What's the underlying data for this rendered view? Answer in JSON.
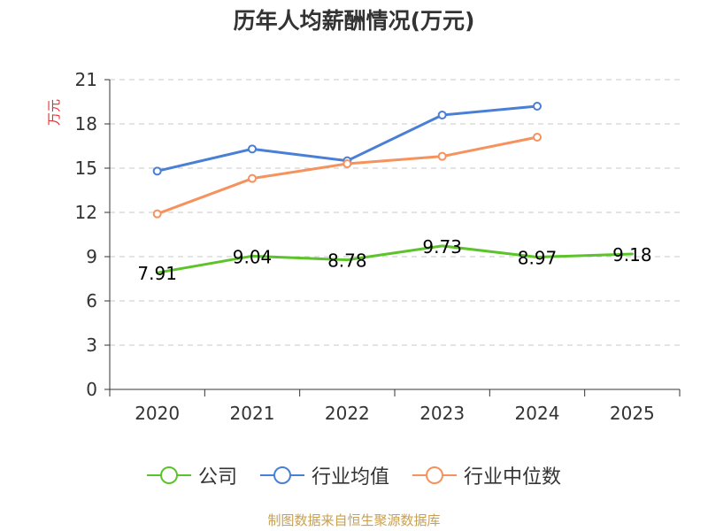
{
  "chart_data": {
    "type": "line",
    "title": "历年人均薪酬情况(万元)",
    "ylabel": "万元",
    "xlabel": "",
    "categories": [
      "2020",
      "2021",
      "2022",
      "2023",
      "2024",
      "2025"
    ],
    "ylim": [
      0,
      21
    ],
    "yticks": [
      0,
      3,
      6,
      9,
      12,
      15,
      18,
      21
    ],
    "grid": true,
    "legend_position": "bottom-center",
    "series": [
      {
        "name": "公司",
        "color": "#5cc42a",
        "values": [
          7.91,
          9.04,
          8.78,
          9.73,
          8.97,
          9.18
        ],
        "show_labels": true
      },
      {
        "name": "行业均值",
        "color": "#4a7fd6",
        "values": [
          14.8,
          16.3,
          15.5,
          18.6,
          19.2,
          null
        ],
        "show_labels": false
      },
      {
        "name": "行业中位数",
        "color": "#f5925e",
        "values": [
          11.9,
          14.3,
          15.3,
          15.8,
          17.1,
          null
        ],
        "show_labels": false
      }
    ],
    "data_labels": [
      "7.91",
      "9.04",
      "8.78",
      "9.73",
      "8.97",
      "9.18"
    ]
  },
  "source": "制图数据来自恒生聚源数据库"
}
